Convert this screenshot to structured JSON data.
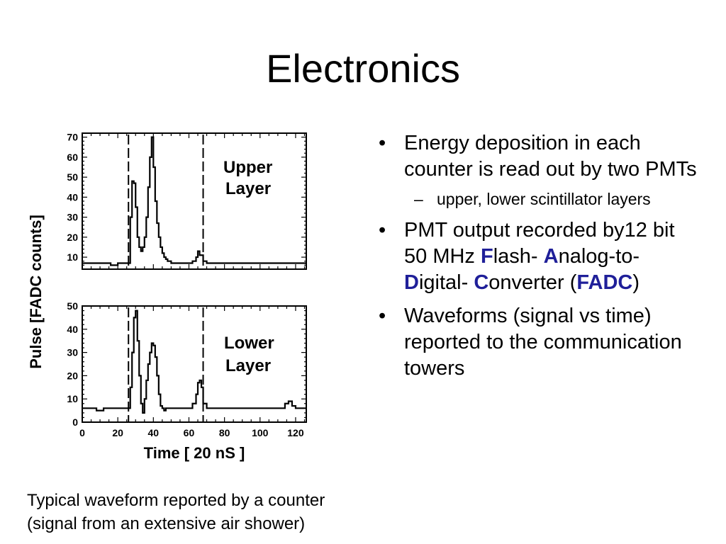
{
  "slide": {
    "title": "Electronics",
    "caption_line1": "Typical waveform reported by a counter",
    "caption_line2": "(signal from an extensive air shower)"
  },
  "bullets": {
    "b1": "Energy deposition in each counter is read out by two PMTs",
    "b1_sub": "upper, lower scintillator layers",
    "b2_pre": "PMT output recorded by12 bit 50 MHz ",
    "b2_F": "F",
    "b2_lash": "lash-",
    "b2_A": "A",
    "b2_nalog": "nalog-to-",
    "b2_D": "D",
    "b2_igital": "igital-",
    "b2_C": "C",
    "b2_onverter": "onverter (",
    "b2_FADC": "FADC",
    "b2_close": ")",
    "b3": "Waveforms (signal vs time) reported to the communication towers",
    "bullet_marker": "•",
    "dash_marker": "–"
  },
  "colors": {
    "highlight": "#1f1f99",
    "text": "#000000"
  },
  "chart_data": [
    {
      "type": "line",
      "panel_label_line1": "Upper",
      "panel_label_line2": "Layer",
      "ylabel": "Pulse [FADC counts]",
      "ylim": [
        4,
        72
      ],
      "yticks": [
        10,
        20,
        30,
        40,
        50,
        60,
        70
      ],
      "xlim": [
        0,
        126
      ],
      "dashed_markers_x": [
        26,
        68
      ],
      "series": [
        {
          "x": [
            0,
            4,
            8,
            12,
            16,
            20,
            24,
            26,
            27,
            28,
            29,
            30,
            31,
            32,
            33,
            34,
            35,
            36,
            37,
            38,
            39,
            40,
            41,
            42,
            43,
            44,
            45,
            46,
            47,
            48,
            50,
            52,
            56,
            60,
            62,
            64,
            65,
            66,
            68,
            70,
            74,
            80,
            90,
            100,
            110,
            120,
            126
          ],
          "y": [
            7,
            7,
            7,
            7,
            6,
            7,
            7,
            7,
            30,
            48,
            47,
            35,
            20,
            15,
            13,
            15,
            20,
            30,
            45,
            60,
            70,
            55,
            38,
            27,
            20,
            15,
            12,
            10,
            9,
            8,
            7,
            7,
            7,
            7,
            8,
            10,
            13,
            11,
            8,
            7,
            7,
            7,
            7,
            7,
            7,
            7,
            7
          ]
        }
      ]
    },
    {
      "type": "line",
      "panel_label_line1": "Lower",
      "panel_label_line2": "Layer",
      "xlabel": "Time [ 20 nS ]",
      "ylim": [
        0,
        50
      ],
      "yticks": [
        0,
        10,
        20,
        30,
        40,
        50
      ],
      "xlim": [
        0,
        126
      ],
      "xticks": [
        0,
        20,
        40,
        60,
        80,
        100,
        120
      ],
      "dashed_markers_x": [
        26,
        68
      ],
      "series": [
        {
          "x": [
            0,
            4,
            8,
            12,
            16,
            20,
            24,
            26,
            27,
            28,
            29,
            30,
            31,
            32,
            33,
            34,
            35,
            36,
            37,
            38,
            39,
            40,
            41,
            42,
            43,
            44,
            45,
            46,
            47,
            48,
            50,
            52,
            56,
            60,
            62,
            64,
            65,
            66,
            67,
            68,
            70,
            74,
            80,
            90,
            100,
            110,
            114,
            116,
            118,
            120,
            126
          ],
          "y": [
            6,
            6,
            5,
            6,
            6,
            6,
            6,
            6,
            15,
            30,
            45,
            48,
            35,
            20,
            8,
            4,
            10,
            18,
            25,
            30,
            34,
            33,
            28,
            20,
            12,
            7,
            6,
            5,
            6,
            6,
            6,
            6,
            6,
            6,
            8,
            12,
            17,
            18,
            15,
            8,
            6,
            6,
            6,
            6,
            6,
            6,
            8,
            9,
            7,
            6,
            6
          ]
        }
      ]
    }
  ]
}
